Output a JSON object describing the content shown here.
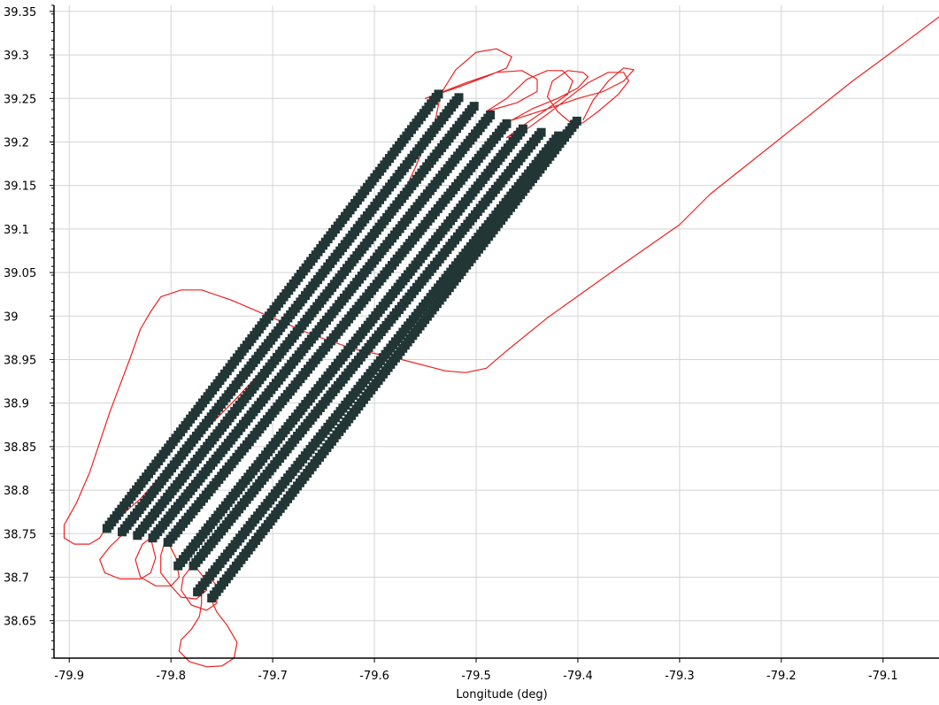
{
  "chart_data": {
    "type": "scatter",
    "title": "",
    "xlabel": "Longitude (deg)",
    "ylabel": "",
    "xlim": [
      -79.915,
      -79.045
    ],
    "ylim": [
      38.607,
      39.357
    ],
    "grid": true,
    "x_ticks": [
      -79.9,
      -79.8,
      -79.7,
      -79.6,
      -79.5,
      -79.4,
      -79.3,
      -79.2,
      -79.1
    ],
    "x_tick_labels": [
      "-79.9",
      "-79.8",
      "-79.7",
      "-79.6",
      "-79.5",
      "-79.4",
      "-79.3",
      "-79.2",
      "-79.1"
    ],
    "y_ticks": [
      38.65,
      38.7,
      38.75,
      38.8,
      38.85,
      38.9,
      38.95,
      39.0,
      39.05,
      39.1,
      39.15,
      39.2,
      39.25,
      39.3,
      39.35
    ],
    "y_tick_labels": [
      "38.65",
      "38.7",
      "38.75",
      "38.8",
      "38.85",
      "38.9",
      "38.95",
      "39",
      "39.05",
      "39.1",
      "39.15",
      "39.2",
      "39.25",
      "39.3",
      "39.35"
    ],
    "colors": {
      "track": "#ee2222",
      "marker": "#223636",
      "grid": "#d4d4d4"
    },
    "series": [
      {
        "kind": "line",
        "points": [
          [
            -79.04,
            39.348
          ],
          [
            -79.08,
            39.313
          ],
          [
            -79.13,
            39.27
          ],
          [
            -79.2,
            39.205
          ],
          [
            -79.27,
            39.14
          ],
          [
            -79.3,
            39.105
          ],
          [
            -79.37,
            39.048
          ],
          [
            -79.43,
            38.998
          ],
          [
            -79.47,
            38.96
          ],
          [
            -79.49,
            38.94
          ],
          [
            -79.51,
            38.935
          ],
          [
            -79.53,
            38.937
          ],
          [
            -79.58,
            38.952
          ],
          [
            -79.62,
            38.962
          ],
          [
            -79.66,
            38.978
          ],
          [
            -79.7,
            38.998
          ],
          [
            -79.74,
            39.018
          ],
          [
            -79.77,
            39.03
          ],
          [
            -79.79,
            39.03
          ],
          [
            -79.81,
            39.022
          ],
          [
            -79.82,
            39.005
          ],
          [
            -79.83,
            38.985
          ],
          [
            -79.84,
            38.952
          ],
          [
            -79.86,
            38.89
          ],
          [
            -79.88,
            38.82
          ],
          [
            -79.893,
            38.785
          ],
          [
            -79.905,
            38.76
          ],
          [
            -79.905,
            38.745
          ],
          [
            -79.895,
            38.738
          ],
          [
            -79.88,
            38.738
          ],
          [
            -79.87,
            38.745
          ],
          [
            -79.865,
            38.755
          ],
          [
            -79.83,
            38.79
          ],
          [
            -79.79,
            38.842
          ],
          [
            -79.74,
            38.9
          ],
          [
            -79.7,
            38.95
          ],
          [
            -79.66,
            39.0
          ],
          [
            -79.62,
            39.06
          ],
          [
            -79.58,
            39.12
          ],
          [
            -79.56,
            39.17
          ],
          [
            -79.54,
            39.225
          ],
          [
            -79.535,
            39.255
          ],
          [
            -79.52,
            39.283
          ],
          [
            -79.5,
            39.303
          ],
          [
            -79.48,
            39.307
          ],
          [
            -79.465,
            39.298
          ],
          [
            -79.47,
            39.285
          ],
          [
            -79.49,
            39.275
          ],
          [
            -79.52,
            39.262
          ],
          [
            -79.55,
            39.25
          ],
          [
            -79.51,
            39.268
          ],
          [
            -79.48,
            39.28
          ],
          [
            -79.455,
            39.282
          ],
          [
            -79.44,
            39.272
          ],
          [
            -79.44,
            39.258
          ],
          [
            -79.46,
            39.245
          ],
          [
            -79.49,
            39.235
          ],
          [
            -79.47,
            39.25
          ],
          [
            -79.45,
            39.272
          ],
          [
            -79.43,
            39.282
          ],
          [
            -79.415,
            39.282
          ],
          [
            -79.405,
            39.27
          ],
          [
            -79.41,
            39.255
          ],
          [
            -79.43,
            39.238
          ],
          [
            -79.465,
            39.225
          ],
          [
            -79.445,
            39.238
          ],
          [
            -79.42,
            39.25
          ],
          [
            -79.4,
            39.262
          ],
          [
            -79.39,
            39.275
          ],
          [
            -79.395,
            39.28
          ],
          [
            -79.41,
            39.282
          ],
          [
            -79.425,
            39.27
          ],
          [
            -79.43,
            39.252
          ],
          [
            -79.42,
            39.235
          ],
          [
            -79.405,
            39.22
          ],
          [
            -79.395,
            39.222
          ],
          [
            -79.38,
            39.235
          ],
          [
            -79.36,
            39.255
          ],
          [
            -79.35,
            39.27
          ],
          [
            -79.355,
            39.28
          ],
          [
            -79.37,
            39.28
          ],
          [
            -79.39,
            39.268
          ],
          [
            -79.41,
            39.25
          ],
          [
            -79.43,
            39.232
          ],
          [
            -79.45,
            39.215
          ],
          [
            -79.47,
            39.205
          ],
          [
            -79.455,
            39.218
          ],
          [
            -79.43,
            39.238
          ],
          [
            -79.4,
            39.25
          ],
          [
            -79.375,
            39.258
          ],
          [
            -79.355,
            39.27
          ],
          [
            -79.345,
            39.283
          ],
          [
            -79.355,
            39.285
          ],
          [
            -79.37,
            39.27
          ],
          [
            -79.385,
            39.248
          ],
          [
            -79.395,
            39.225
          ]
        ]
      },
      {
        "kind": "line",
        "points": [
          [
            -79.845,
            38.752
          ],
          [
            -79.86,
            38.735
          ],
          [
            -79.87,
            38.72
          ],
          [
            -79.865,
            38.705
          ],
          [
            -79.85,
            38.698
          ],
          [
            -79.83,
            38.698
          ],
          [
            -79.82,
            38.705
          ],
          [
            -79.815,
            38.722
          ],
          [
            -79.82,
            38.745
          ],
          [
            -79.828,
            38.738
          ],
          [
            -79.835,
            38.72
          ],
          [
            -79.83,
            38.7
          ],
          [
            -79.815,
            38.69
          ],
          [
            -79.8,
            38.69
          ],
          [
            -79.792,
            38.7
          ],
          [
            -79.795,
            38.722
          ],
          [
            -79.805,
            38.745
          ],
          [
            -79.81,
            38.725
          ],
          [
            -79.81,
            38.705
          ],
          [
            -79.8,
            38.69
          ],
          [
            -79.79,
            38.677
          ],
          [
            -79.775,
            38.675
          ],
          [
            -79.765,
            38.685
          ],
          [
            -79.768,
            38.7
          ],
          [
            -79.778,
            38.715
          ],
          [
            -79.788,
            38.7
          ],
          [
            -79.79,
            38.685
          ],
          [
            -79.78,
            38.668
          ],
          [
            -79.765,
            38.662
          ],
          [
            -79.755,
            38.67
          ],
          [
            -79.755,
            38.69
          ],
          [
            -79.765,
            38.705
          ],
          [
            -79.77,
            38.69
          ],
          [
            -79.77,
            38.67
          ],
          [
            -79.772,
            38.655
          ],
          [
            -79.78,
            38.64
          ],
          [
            -79.79,
            38.628
          ],
          [
            -79.792,
            38.615
          ],
          [
            -79.782,
            38.603
          ],
          [
            -79.765,
            38.597
          ],
          [
            -79.75,
            38.598
          ],
          [
            -79.738,
            38.607
          ],
          [
            -79.735,
            38.625
          ],
          [
            -79.745,
            38.645
          ],
          [
            -79.755,
            38.66
          ],
          [
            -79.762,
            38.678
          ]
        ]
      },
      {
        "kind": "markers",
        "lines": [
          [
            [
              -79.863,
              38.756
            ],
            [
              -79.537,
              39.255
            ]
          ],
          [
            [
              -79.848,
              38.752
            ],
            [
              -79.517,
              39.251
            ]
          ],
          [
            [
              -79.833,
              38.748
            ],
            [
              -79.502,
              39.241
            ]
          ],
          [
            [
              -79.818,
              38.745
            ],
            [
              -79.486,
              39.231
            ]
          ],
          [
            [
              -79.803,
              38.74
            ],
            [
              -79.47,
              39.221
            ]
          ],
          [
            [
              -79.793,
              38.713
            ],
            [
              -79.454,
              39.215
            ]
          ],
          [
            [
              -79.778,
              38.713
            ],
            [
              -79.436,
              39.211
            ]
          ],
          [
            [
              -79.774,
              38.683
            ],
            [
              -79.419,
              39.207
            ]
          ],
          [
            [
              -79.76,
              38.676
            ],
            [
              -79.401,
              39.224
            ]
          ]
        ],
        "spacing": 0.0044
      }
    ]
  }
}
